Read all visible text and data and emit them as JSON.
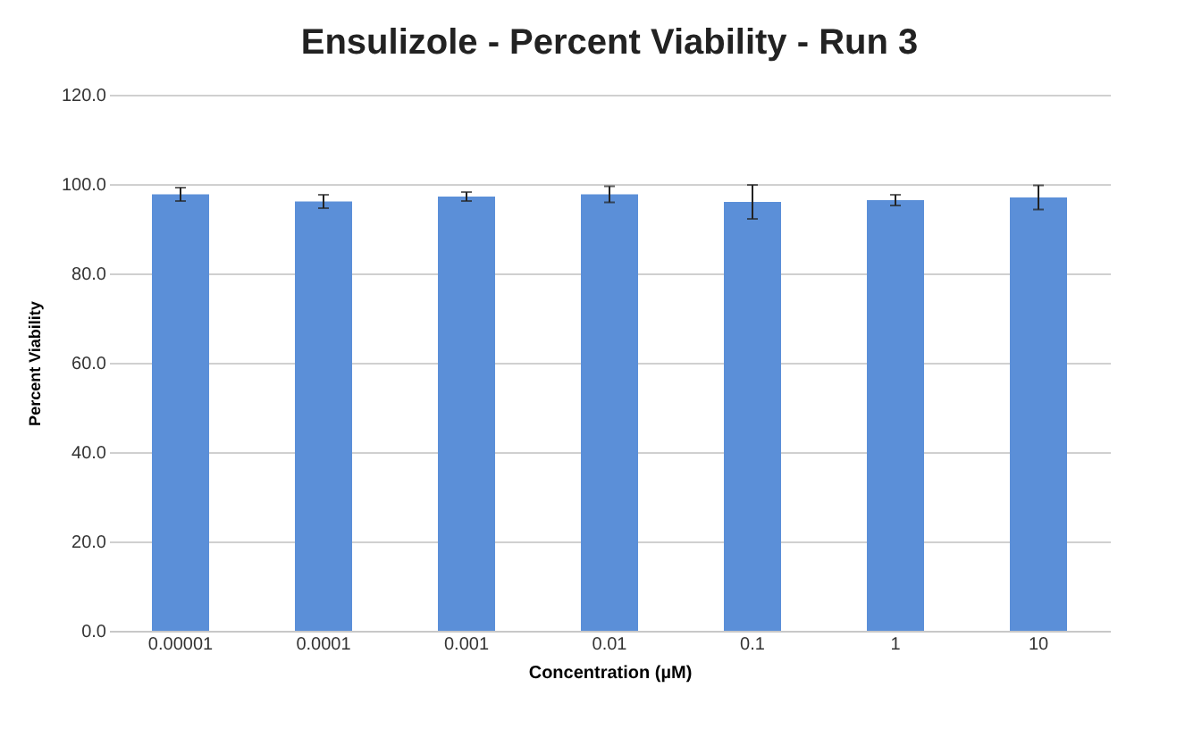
{
  "chart_data": {
    "type": "bar",
    "title": "Ensulizole - Percent Viability - Run 3",
    "xlabel": "Concentration (µM)",
    "ylabel": "Percent Viability",
    "categories": [
      "0.00001",
      "0.0001",
      "0.001",
      "0.01",
      "0.1",
      "1",
      "10"
    ],
    "values": [
      97.7,
      96.1,
      97.2,
      97.7,
      96.0,
      96.4,
      97.0
    ],
    "errors": [
      1.5,
      1.5,
      1.0,
      1.8,
      3.8,
      1.2,
      2.7
    ],
    "color": "#5b8fd8",
    "ylim": [
      0,
      120
    ],
    "yticks": [
      {
        "value": 0,
        "label": "0.0"
      },
      {
        "value": 20,
        "label": "20.0"
      },
      {
        "value": 40,
        "label": "40.0"
      },
      {
        "value": 60,
        "label": "60.0"
      },
      {
        "value": 80,
        "label": "80.0"
      },
      {
        "value": 100,
        "label": "100.0"
      },
      {
        "value": 120,
        "label": "120.0"
      }
    ],
    "grid": "y"
  }
}
